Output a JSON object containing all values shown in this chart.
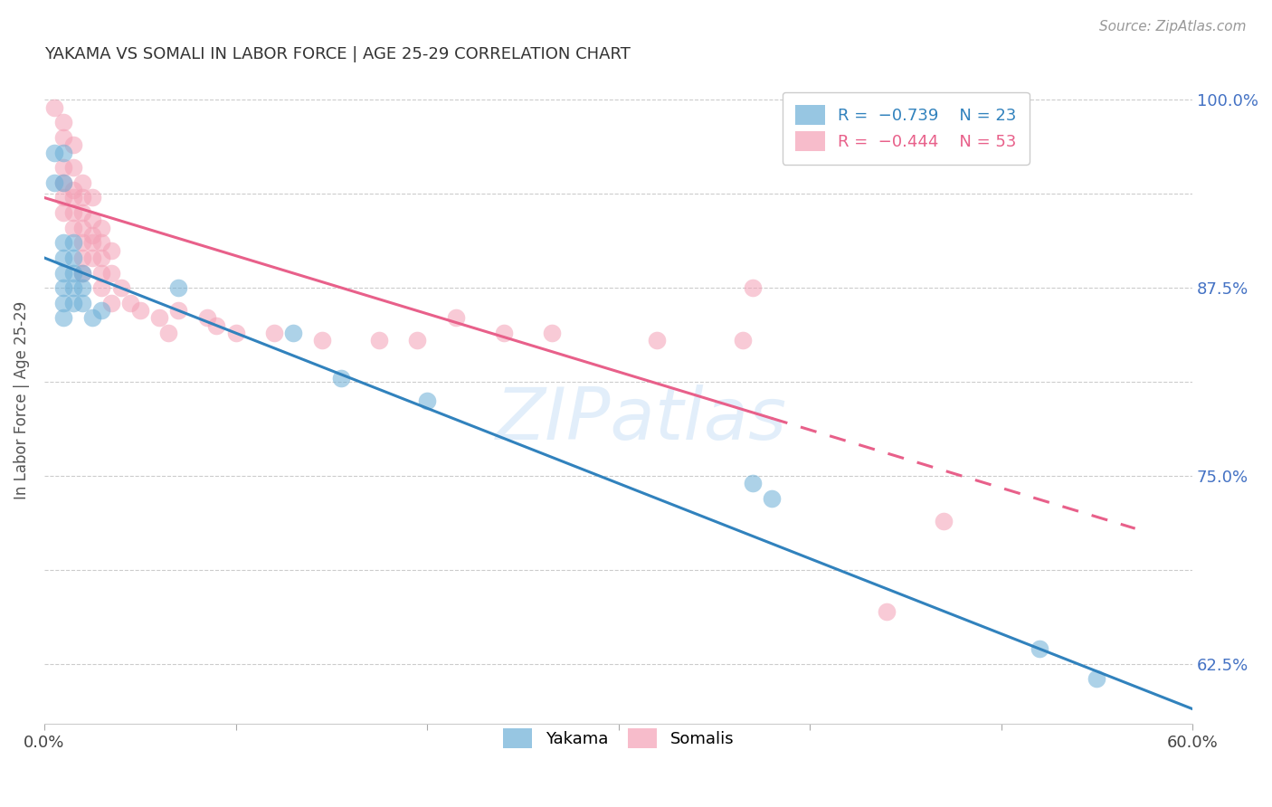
{
  "title": "YAKAMA VS SOMALI IN LABOR FORCE | AGE 25-29 CORRELATION CHART",
  "source": "Source: ZipAtlas.com",
  "ylabel": "In Labor Force | Age 25-29",
  "xmin": 0.0,
  "xmax": 0.6,
  "ymin": 0.585,
  "ymax": 1.015,
  "xticks": [
    0.0,
    0.1,
    0.2,
    0.3,
    0.4,
    0.5,
    0.6
  ],
  "yticks": [
    0.625,
    0.6875,
    0.75,
    0.8125,
    0.875,
    0.9375,
    1.0
  ],
  "ytick_labels_right": [
    "62.5%",
    "",
    "75.0%",
    "",
    "87.5%",
    "",
    "100.0%"
  ],
  "xtick_labels": [
    "0.0%",
    "",
    "",
    "",
    "",
    "",
    "60.0%"
  ],
  "watermark": "ZIPatlas",
  "yakama_color": "#6baed6",
  "somali_color": "#f4a0b5",
  "yakama_line_color": "#3182bd",
  "somali_line_color": "#e8608a",
  "yakama_points": [
    [
      0.005,
      0.965
    ],
    [
      0.01,
      0.965
    ],
    [
      0.005,
      0.945
    ],
    [
      0.01,
      0.945
    ],
    [
      0.01,
      0.905
    ],
    [
      0.015,
      0.905
    ],
    [
      0.01,
      0.895
    ],
    [
      0.015,
      0.895
    ],
    [
      0.01,
      0.885
    ],
    [
      0.015,
      0.885
    ],
    [
      0.02,
      0.885
    ],
    [
      0.01,
      0.875
    ],
    [
      0.015,
      0.875
    ],
    [
      0.02,
      0.875
    ],
    [
      0.01,
      0.865
    ],
    [
      0.015,
      0.865
    ],
    [
      0.01,
      0.855
    ],
    [
      0.02,
      0.865
    ],
    [
      0.025,
      0.855
    ],
    [
      0.03,
      0.86
    ],
    [
      0.07,
      0.875
    ],
    [
      0.13,
      0.845
    ],
    [
      0.155,
      0.815
    ],
    [
      0.2,
      0.8
    ],
    [
      0.37,
      0.745
    ],
    [
      0.38,
      0.735
    ],
    [
      0.52,
      0.635
    ],
    [
      0.55,
      0.615
    ]
  ],
  "somali_points": [
    [
      0.005,
      0.995
    ],
    [
      0.01,
      0.985
    ],
    [
      0.01,
      0.975
    ],
    [
      0.015,
      0.97
    ],
    [
      0.01,
      0.955
    ],
    [
      0.015,
      0.955
    ],
    [
      0.01,
      0.945
    ],
    [
      0.015,
      0.94
    ],
    [
      0.02,
      0.945
    ],
    [
      0.01,
      0.935
    ],
    [
      0.015,
      0.935
    ],
    [
      0.02,
      0.935
    ],
    [
      0.025,
      0.935
    ],
    [
      0.01,
      0.925
    ],
    [
      0.015,
      0.925
    ],
    [
      0.02,
      0.925
    ],
    [
      0.025,
      0.92
    ],
    [
      0.015,
      0.915
    ],
    [
      0.02,
      0.915
    ],
    [
      0.025,
      0.91
    ],
    [
      0.03,
      0.915
    ],
    [
      0.02,
      0.905
    ],
    [
      0.025,
      0.905
    ],
    [
      0.03,
      0.905
    ],
    [
      0.035,
      0.9
    ],
    [
      0.02,
      0.895
    ],
    [
      0.025,
      0.895
    ],
    [
      0.03,
      0.895
    ],
    [
      0.02,
      0.885
    ],
    [
      0.03,
      0.885
    ],
    [
      0.035,
      0.885
    ],
    [
      0.03,
      0.875
    ],
    [
      0.04,
      0.875
    ],
    [
      0.035,
      0.865
    ],
    [
      0.045,
      0.865
    ],
    [
      0.05,
      0.86
    ],
    [
      0.06,
      0.855
    ],
    [
      0.065,
      0.845
    ],
    [
      0.07,
      0.86
    ],
    [
      0.085,
      0.855
    ],
    [
      0.09,
      0.85
    ],
    [
      0.1,
      0.845
    ],
    [
      0.12,
      0.845
    ],
    [
      0.145,
      0.84
    ],
    [
      0.175,
      0.84
    ],
    [
      0.195,
      0.84
    ],
    [
      0.215,
      0.855
    ],
    [
      0.24,
      0.845
    ],
    [
      0.265,
      0.845
    ],
    [
      0.32,
      0.84
    ],
    [
      0.365,
      0.84
    ],
    [
      0.37,
      0.875
    ],
    [
      0.44,
      0.66
    ],
    [
      0.47,
      0.72
    ]
  ],
  "yakama_line": {
    "x0": 0.0,
    "y0": 0.895,
    "x1": 0.6,
    "y1": 0.595
  },
  "somali_line": {
    "x0": 0.0,
    "y0": 0.935,
    "x1": 0.57,
    "y1": 0.715
  },
  "somali_line_solid_end": 0.38,
  "somali_line_dash_end": 0.57
}
